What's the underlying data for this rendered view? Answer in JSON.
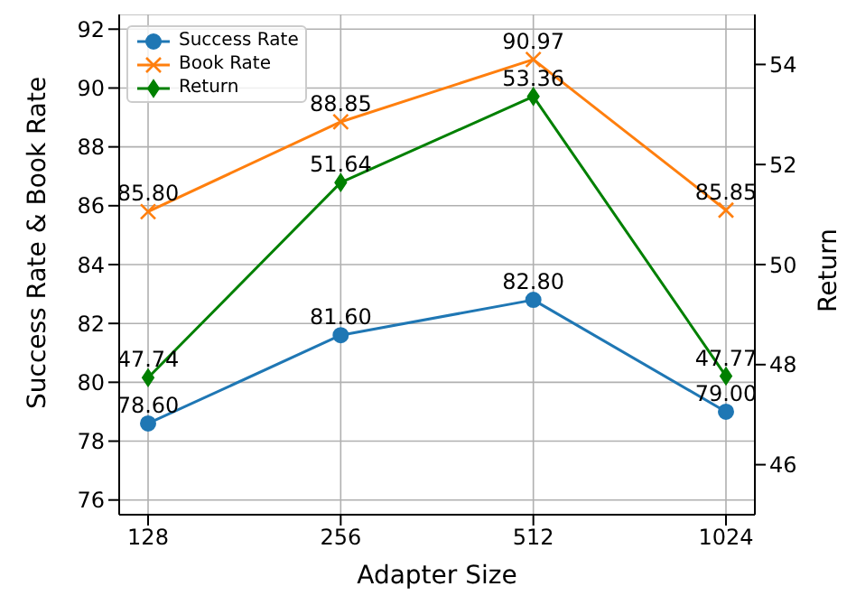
{
  "chart_data": {
    "type": "line",
    "xlabel": "Adapter Size",
    "ylabel": "Success Rate & Book Rate",
    "y2label": "Return",
    "categories": [
      "128",
      "256",
      "512",
      "1024"
    ],
    "series": [
      {
        "name": "Success Rate",
        "color": "#1f77b4",
        "marker": "circle",
        "values": [
          78.6,
          81.6,
          82.8,
          79.0
        ],
        "value_labels": [
          "78.60",
          "81.60",
          "82.80",
          "79.00"
        ]
      },
      {
        "name": "Book Rate",
        "color": "#ff7f0e",
        "marker": "cross",
        "values": [
          85.8,
          88.85,
          90.97,
          85.85
        ],
        "value_labels": [
          "85.80",
          "88.85",
          "90.97",
          "85.85"
        ]
      },
      {
        "name": "Return",
        "color": "#008000",
        "marker": "diamond",
        "axis": "y2",
        "values": [
          47.74,
          51.64,
          53.36,
          47.77
        ],
        "value_labels": [
          "47.74",
          "51.64",
          "53.36",
          "47.77"
        ]
      }
    ],
    "ylim": [
      75.5,
      92.5
    ],
    "yticks": [
      76,
      78,
      80,
      82,
      84,
      86,
      88,
      90,
      92
    ],
    "y2lim": [
      45,
      55
    ],
    "y2ticks": [
      46,
      48,
      50,
      52,
      54
    ],
    "grid": true,
    "legend": "top left"
  }
}
